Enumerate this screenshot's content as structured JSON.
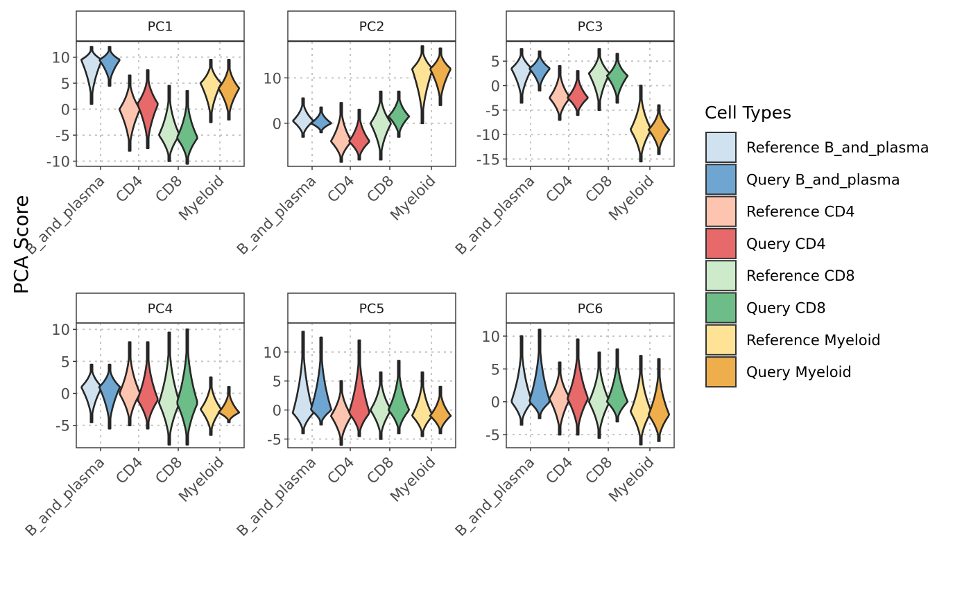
{
  "chart_data": {
    "type": "violin",
    "ylabel": "PCA Score",
    "categories": [
      "B_and_plasma",
      "CD4",
      "CD8",
      "Myeloid"
    ],
    "legend": {
      "title": "Cell Types",
      "placement": "right",
      "entries": [
        {
          "label": "Reference B_and_plasma",
          "color": "#d0e2ef"
        },
        {
          "label": "Query B_and_plasma",
          "color": "#6fa6d1"
        },
        {
          "label": "Reference CD4",
          "color": "#fdc5af"
        },
        {
          "label": "Query CD4",
          "color": "#e8696a"
        },
        {
          "label": "Reference CD8",
          "color": "#cdeacb"
        },
        {
          "label": "Query CD8",
          "color": "#6cbd87"
        },
        {
          "label": "Reference Myeloid",
          "color": "#fee396"
        },
        {
          "label": "Query Myeloid",
          "color": "#eeae4b"
        }
      ]
    },
    "panels": [
      {
        "title": "PC1",
        "ylim": [
          -11,
          13
        ],
        "yticks": [
          10,
          5,
          0,
          -5,
          -10
        ],
        "ytick_labels": [
          "10",
          "5",
          "0",
          "-5",
          "-10"
        ],
        "violins": [
          {
            "min": 1,
            "max": 12,
            "mode": 9.5
          },
          {
            "min": 4.5,
            "max": 12,
            "mode": 9.5
          },
          {
            "min": -8,
            "max": 6.5,
            "mode": 0
          },
          {
            "min": -7.5,
            "max": 7.5,
            "mode": 1
          },
          {
            "min": -10,
            "max": 4.5,
            "mode": -5
          },
          {
            "min": -10.5,
            "max": 3.5,
            "mode": -5.5
          },
          {
            "min": -2.5,
            "max": 9.5,
            "mode": 5
          },
          {
            "min": -2,
            "max": 9.5,
            "mode": 4
          }
        ]
      },
      {
        "title": "PC2",
        "ylim": [
          -9.5,
          18
        ],
        "yticks": [
          10,
          0
        ],
        "ytick_labels": [
          "10",
          "0"
        ],
        "violins": [
          {
            "min": -3,
            "max": 5.5,
            "mode": 0.5
          },
          {
            "min": -2,
            "max": 3.5,
            "mode": 0
          },
          {
            "min": -8.5,
            "max": 4.5,
            "mode": -4
          },
          {
            "min": -8,
            "max": 3,
            "mode": -4
          },
          {
            "min": -8,
            "max": 7,
            "mode": 0
          },
          {
            "min": -3,
            "max": 7,
            "mode": 1.5
          },
          {
            "min": 0,
            "max": 17,
            "mode": 12
          },
          {
            "min": 4,
            "max": 16.5,
            "mode": 12
          }
        ]
      },
      {
        "title": "PC3",
        "ylim": [
          -16.5,
          9
        ],
        "yticks": [
          5,
          0,
          -5,
          -10,
          -15
        ],
        "ytick_labels": [
          "5",
          "0",
          "-5",
          "-10",
          "-15"
        ],
        "violins": [
          {
            "min": -3.5,
            "max": 7.5,
            "mode": 3.5
          },
          {
            "min": -1,
            "max": 7,
            "mode": 3.5
          },
          {
            "min": -7,
            "max": 4,
            "mode": -2.5
          },
          {
            "min": -6,
            "max": 3,
            "mode": -2.5
          },
          {
            "min": -5,
            "max": 7.5,
            "mode": 2.5
          },
          {
            "min": -3.5,
            "max": 6.5,
            "mode": 2
          },
          {
            "min": -15.5,
            "max": 0,
            "mode": -9
          },
          {
            "min": -14,
            "max": -4,
            "mode": -9
          }
        ]
      },
      {
        "title": "PC4",
        "ylim": [
          -8.5,
          11
        ],
        "yticks": [
          10,
          5,
          0,
          -5
        ],
        "ytick_labels": [
          "10",
          "5",
          "0",
          "-5"
        ],
        "violins": [
          {
            "min": -4.5,
            "max": 4.5,
            "mode": 1
          },
          {
            "min": -5.5,
            "max": 4.5,
            "mode": 1
          },
          {
            "min": -5,
            "max": 8,
            "mode": 0
          },
          {
            "min": -5.5,
            "max": 8,
            "mode": -1
          },
          {
            "min": -8,
            "max": 9.5,
            "mode": -1.5
          },
          {
            "min": -8,
            "max": 10,
            "mode": -1.5
          },
          {
            "min": -6.5,
            "max": 2.5,
            "mode": -2.5
          },
          {
            "min": -4.5,
            "max": 1,
            "mode": -3
          }
        ]
      },
      {
        "title": "PC5",
        "ylim": [
          -6.5,
          15
        ],
        "yticks": [
          10,
          5,
          0,
          -5
        ],
        "ytick_labels": [
          "10",
          "5",
          "0",
          "-5"
        ],
        "violins": [
          {
            "min": -4,
            "max": 13.5,
            "mode": -0.5
          },
          {
            "min": -2.5,
            "max": 12.5,
            "mode": 0
          },
          {
            "min": -6,
            "max": 5,
            "mode": -1
          },
          {
            "min": -4.5,
            "max": 12,
            "mode": -0.5
          },
          {
            "min": -5,
            "max": 6.5,
            "mode": 0
          },
          {
            "min": -4,
            "max": 8.5,
            "mode": 0
          },
          {
            "min": -4.5,
            "max": 6.5,
            "mode": -1
          },
          {
            "min": -4,
            "max": 4,
            "mode": -1
          }
        ]
      },
      {
        "title": "PC6",
        "ylim": [
          -7,
          12
        ],
        "yticks": [
          10,
          5,
          0,
          -5
        ],
        "ytick_labels": [
          "10",
          "5",
          "0",
          "-5"
        ],
        "violins": [
          {
            "min": -3.5,
            "max": 10,
            "mode": 0
          },
          {
            "min": -2.5,
            "max": 11,
            "mode": 0
          },
          {
            "min": -5,
            "max": 6,
            "mode": 0.5
          },
          {
            "min": -5,
            "max": 9.5,
            "mode": 0.5
          },
          {
            "min": -5.5,
            "max": 7.5,
            "mode": 0
          },
          {
            "min": -3,
            "max": 8,
            "mode": 0
          },
          {
            "min": -6.5,
            "max": 7,
            "mode": -1.5
          },
          {
            "min": -6,
            "max": 6.5,
            "mode": -2
          }
        ]
      }
    ]
  }
}
